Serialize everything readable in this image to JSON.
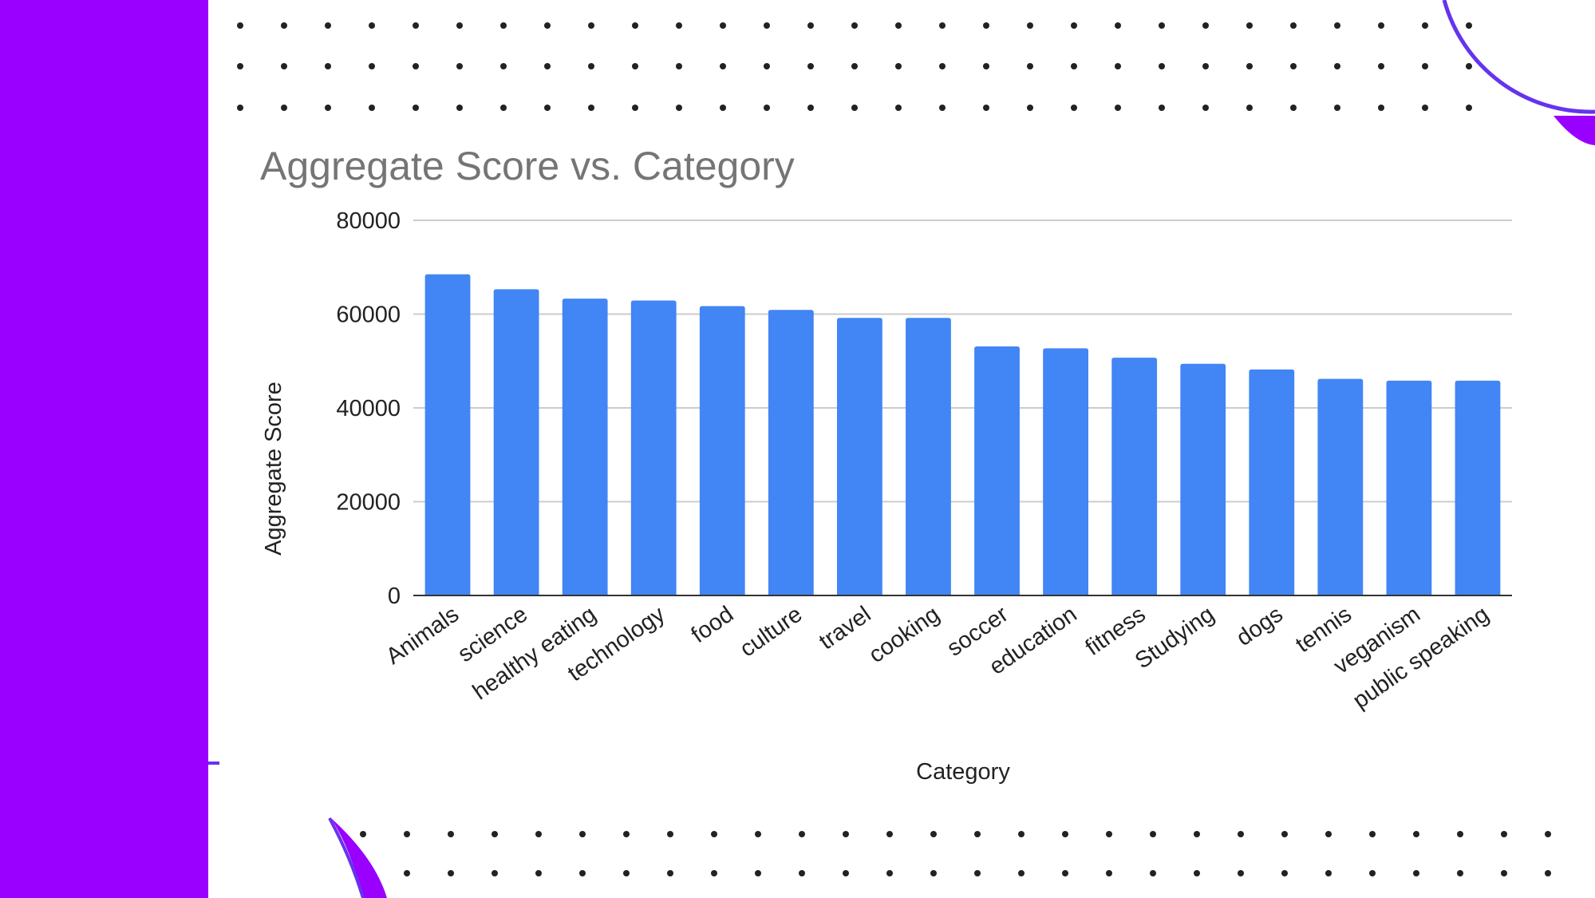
{
  "colors": {
    "background": "#ffffff",
    "sidebar": "#9900ff",
    "bar": "#4285f4",
    "gridline": "#cccccc",
    "axis": "#333333",
    "dots": "#222222",
    "title": "#757575"
  },
  "chart_data": {
    "type": "bar",
    "title": "Aggregate Score vs. Category",
    "xlabel": "Category",
    "ylabel": "Aggregate Score",
    "ylim": [
      0,
      80000
    ],
    "yticks": [
      0,
      20000,
      40000,
      60000,
      80000
    ],
    "grid": true,
    "categories": [
      "Animals",
      "science",
      "healthy eating",
      "technology",
      "food",
      "culture",
      "travel",
      "cooking",
      "soccer",
      "education",
      "fitness",
      "Studying",
      "dogs",
      "tennis",
      "veganism",
      "public speaking"
    ],
    "values": [
      68500,
      65300,
      63300,
      62900,
      61700,
      60900,
      59200,
      59200,
      53100,
      52700,
      50700,
      49400,
      48200,
      46200,
      45800,
      45800
    ]
  }
}
